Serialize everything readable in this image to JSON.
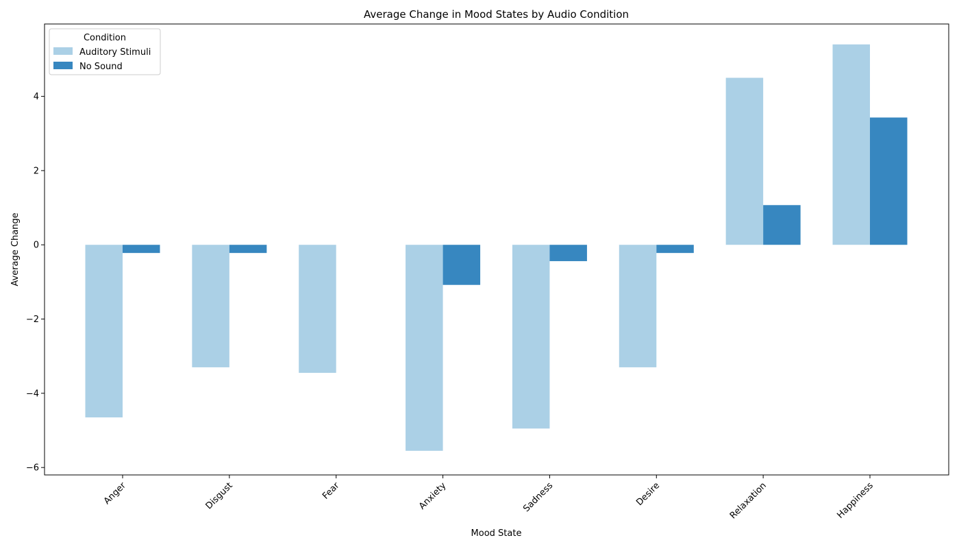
{
  "chart_data": {
    "type": "bar",
    "title": "Average Change in Mood States by Audio Condition",
    "xlabel": "Mood State",
    "ylabel": "Average Change",
    "categories": [
      "Anger",
      "Disgust",
      "Fear",
      "Anxiety",
      "Sadness",
      "Desire",
      "Relaxation",
      "Happiness"
    ],
    "series": [
      {
        "name": "Auditory Stimuli",
        "color": "#abd0e6",
        "values": [
          -4.65,
          -3.3,
          -3.45,
          -5.55,
          -4.95,
          -3.3,
          4.5,
          5.4
        ]
      },
      {
        "name": "No Sound",
        "color": "#3787c0",
        "values": [
          -0.22,
          -0.22,
          0,
          -1.08,
          -0.44,
          -0.22,
          1.07,
          3.43
        ]
      }
    ],
    "ylim": [
      -6.2,
      5.95
    ],
    "yticks": [
      -6,
      -4,
      -2,
      0,
      2,
      4
    ],
    "legend": {
      "title": "Condition",
      "position": "top-left"
    },
    "grid": false
  }
}
